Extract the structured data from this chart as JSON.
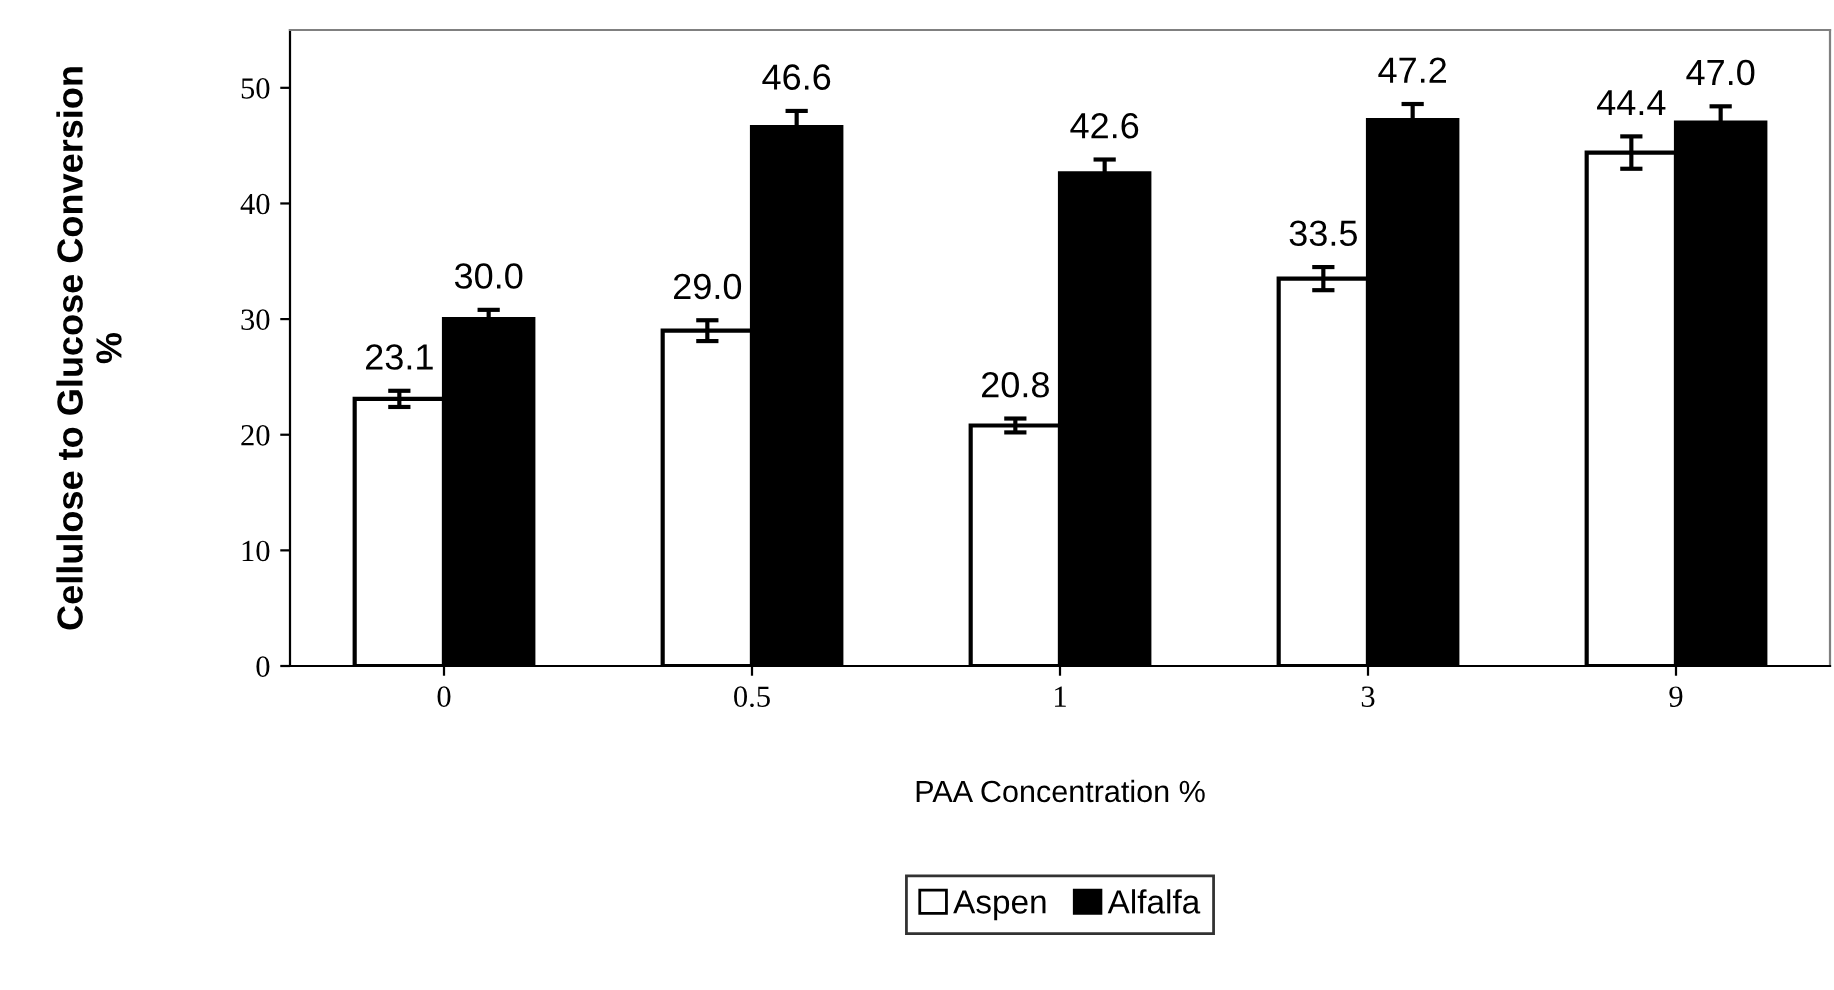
{
  "chart_data": {
    "type": "bar",
    "xlabel": "PAA Concentration %",
    "ylabel": "Cellulose to Glucose Conversion\n%",
    "categories": [
      "0",
      "0.5",
      "1",
      "3",
      "9"
    ],
    "series": [
      {
        "name": "Aspen",
        "color": "#ffffff",
        "values": [
          23.1,
          29.0,
          20.8,
          33.5,
          44.4
        ],
        "value_labels": [
          "23.1",
          "29.0",
          "20.8",
          "33.5",
          "44.4"
        ],
        "errors": [
          0.7,
          0.9,
          0.6,
          1.0,
          1.4
        ]
      },
      {
        "name": "Alfalfa",
        "color": "#000000",
        "values": [
          30.0,
          46.6,
          42.6,
          47.2,
          47.0
        ],
        "value_labels": [
          "30.0",
          "46.6",
          "42.6",
          "47.2",
          "47.0"
        ],
        "errors": [
          0.8,
          1.4,
          1.2,
          1.4,
          1.4
        ]
      }
    ],
    "ylim": [
      0,
      55
    ],
    "yticks": [
      0,
      10,
      20,
      30,
      40,
      50
    ],
    "legend": "bottom",
    "grid": false
  }
}
